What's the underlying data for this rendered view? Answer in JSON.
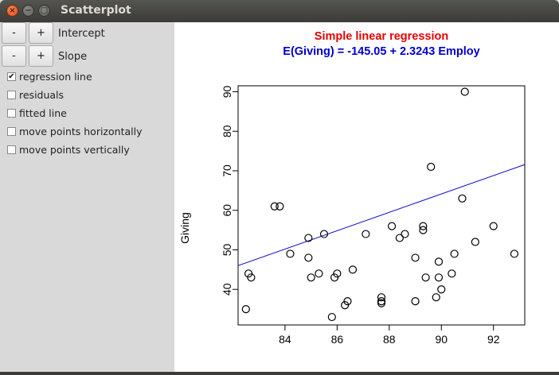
{
  "window": {
    "title": "Scatterplot"
  },
  "controls": {
    "intercept": {
      "minus": "-",
      "plus": "+",
      "label": "Intercept"
    },
    "slope": {
      "minus": "-",
      "plus": "+",
      "label": "Slope"
    },
    "checkboxes": [
      {
        "label": "regression line",
        "checked": true,
        "mark": "✔"
      },
      {
        "label": "residuals",
        "checked": false,
        "mark": ""
      },
      {
        "label": "fitted line",
        "checked": false,
        "mark": ""
      },
      {
        "label": "move points horizontally",
        "checked": false,
        "mark": ""
      },
      {
        "label": "move points vertically",
        "checked": false,
        "mark": ""
      }
    ]
  },
  "chart_data": {
    "type": "scatter",
    "title": "Simple linear regression",
    "subtitle": "E(Giving) = -145.05 + 2.3243 Employ",
    "title_color": "#e60000",
    "subtitle_color": "#0000cc",
    "xlabel": "",
    "ylabel": "Giving",
    "xlim": [
      82.2,
      93.2
    ],
    "ylim": [
      31,
      91.5
    ],
    "xticks": [
      84,
      86,
      88,
      90,
      92
    ],
    "yticks": [
      40,
      50,
      60,
      70,
      80,
      90
    ],
    "grid": false,
    "regression_line": {
      "intercept": -145.05,
      "slope": 2.3243,
      "color": "#0000cc"
    },
    "points": [
      [
        82.5,
        35
      ],
      [
        82.6,
        44
      ],
      [
        82.7,
        43
      ],
      [
        83.6,
        61
      ],
      [
        83.8,
        61
      ],
      [
        84.2,
        49
      ],
      [
        84.9,
        53
      ],
      [
        84.9,
        48
      ],
      [
        85.0,
        43
      ],
      [
        85.3,
        44
      ],
      [
        85.5,
        54
      ],
      [
        85.8,
        33
      ],
      [
        85.9,
        43
      ],
      [
        86.0,
        44
      ],
      [
        86.3,
        36
      ],
      [
        86.4,
        37
      ],
      [
        86.6,
        45
      ],
      [
        87.1,
        54
      ],
      [
        87.7,
        38
      ],
      [
        87.7,
        37
      ],
      [
        87.7,
        36.5
      ],
      [
        88.1,
        56
      ],
      [
        88.4,
        53
      ],
      [
        88.6,
        54
      ],
      [
        89.0,
        37
      ],
      [
        89.0,
        48
      ],
      [
        89.3,
        55
      ],
      [
        89.3,
        56
      ],
      [
        89.4,
        43
      ],
      [
        89.6,
        71
      ],
      [
        89.8,
        38
      ],
      [
        89.9,
        47
      ],
      [
        89.9,
        43
      ],
      [
        90.0,
        40
      ],
      [
        90.4,
        44
      ],
      [
        90.5,
        49
      ],
      [
        90.8,
        63
      ],
      [
        90.9,
        90
      ],
      [
        91.3,
        52
      ],
      [
        92.0,
        56
      ],
      [
        92.8,
        49
      ]
    ]
  }
}
